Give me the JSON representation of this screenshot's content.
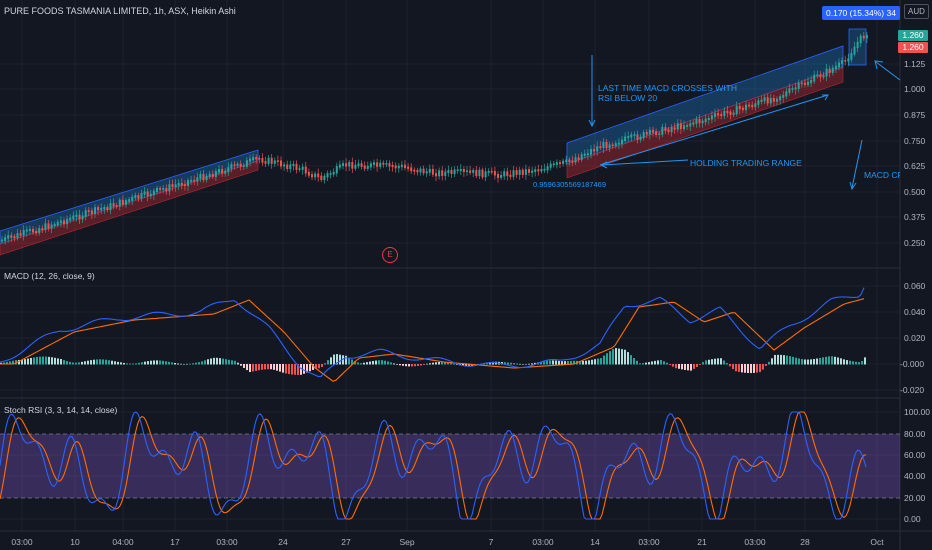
{
  "header": {
    "symbol_title": "PURE FOODS TASMANIA LIMITED, 1h, ASX, Heikin Ashi",
    "change_badge": "0.170 (15.34%) 34",
    "currency": "AUD",
    "event_marker": "E"
  },
  "price_axis": {
    "labels": [
      "1.260",
      "1.125",
      "1.000",
      "0.875",
      "0.750",
      "0.625",
      "0.500",
      "0.375",
      "0.250"
    ],
    "last_price": "1.260",
    "second_price": "1.260"
  },
  "macd_axis": {
    "labels": [
      "0.060",
      "0.040",
      "0.020",
      "-0.000",
      "-0.020"
    ]
  },
  "stoch_axis": {
    "labels": [
      "100.00",
      "80.00",
      "60.00",
      "40.00",
      "20.00",
      "0.00"
    ]
  },
  "time_axis": {
    "labels": [
      "03:00",
      "10",
      "04:00",
      "17",
      "03:00",
      "24",
      "27",
      "Sep",
      "7",
      "03:00",
      "14",
      "03:00",
      "21",
      "03:00",
      "28",
      "Oct"
    ]
  },
  "annotations": {
    "macd_cross_note": "LAST TIME MACD CROSSES WITH\nRSI BELOW 20",
    "range_note": "HOLDING TRADING RANGE",
    "level_value": "0.9596305569187469",
    "macd_right_note": "MACD CRO"
  },
  "indicators": {
    "macd_title": "MACD (12, 26, close, 9)",
    "stoch_title": "Stoch RSI (3, 3, 14, 14, close)"
  },
  "colors": {
    "background": "#131722",
    "up": "#26a69a",
    "down": "#ef5350",
    "macd_line": "#2962ff",
    "signal_line": "#ff6d00",
    "stoch_band": "#7e57c2",
    "annotation": "#2196f3"
  }
}
